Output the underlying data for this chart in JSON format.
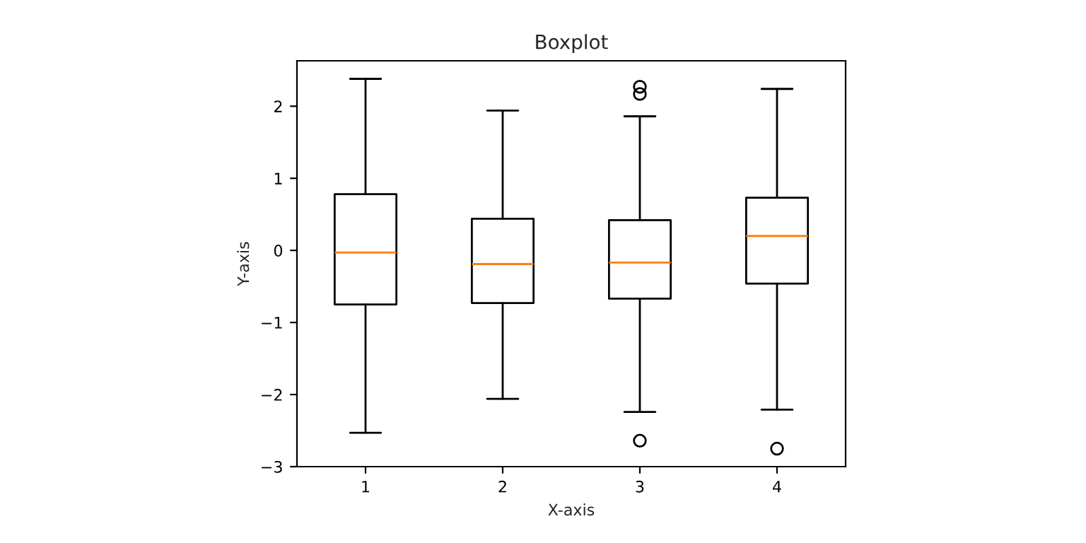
{
  "chart_data": {
    "type": "box",
    "title": "Boxplot",
    "xlabel": "X-axis",
    "ylabel": "Y-axis",
    "categories": [
      "1",
      "2",
      "3",
      "4"
    ],
    "boxes": [
      {
        "low": -2.53,
        "q1": -0.75,
        "median": -0.03,
        "q3": 0.78,
        "high": 2.38
      },
      {
        "low": -2.06,
        "q1": -0.73,
        "median": -0.19,
        "q3": 0.44,
        "high": 1.94
      },
      {
        "low": -2.24,
        "q1": -0.67,
        "median": -0.17,
        "q3": 0.42,
        "high": 1.86,
        "outliers": [
          2.27,
          2.17,
          -2.64
        ]
      },
      {
        "low": -2.21,
        "q1": -0.46,
        "median": 0.2,
        "q3": 0.73,
        "high": 2.24,
        "outliers": [
          -2.75
        ]
      }
    ],
    "color": "#000000",
    "ylim": [
      -3.0,
      2.63
    ],
    "yticks": [
      {
        "value": -3,
        "label": "−3"
      },
      {
        "value": -2,
        "label": "−2"
      },
      {
        "value": -1,
        "label": "−1"
      },
      0,
      1,
      2
    ],
    "grid": false,
    "legend": false
  }
}
